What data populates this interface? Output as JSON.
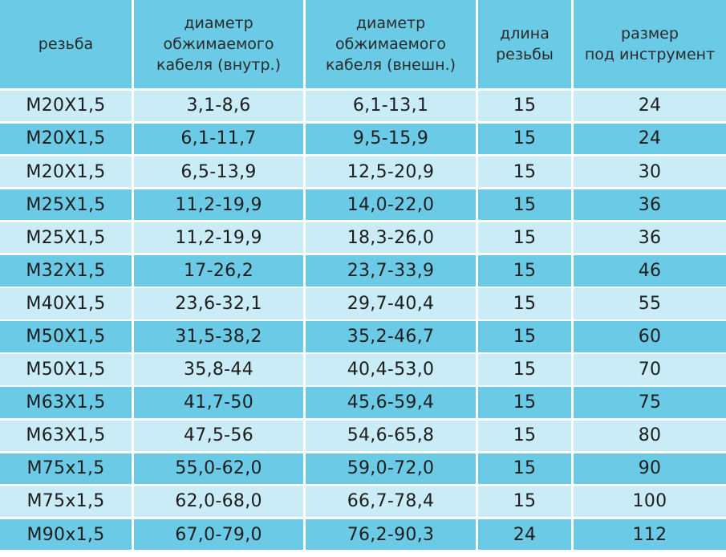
{
  "headers": [
    "резьба",
    "диаметр\nобжимаемого\nкабеля (внутр.)",
    "диаметр\nобжимаемого\nкабеля (внешн.)",
    "длина\nрезьбы",
    "размер\nпод инструмент"
  ],
  "rows": [
    [
      "M20X1,5",
      "3,1-8,6",
      "6,1-13,1",
      "15",
      "24"
    ],
    [
      "M20X1,5",
      "6,1-11,7",
      "9,5-15,9",
      "15",
      "24"
    ],
    [
      "M20X1,5",
      "6,5-13,9",
      "12,5-20,9",
      "15",
      "30"
    ],
    [
      "M25X1,5",
      "11,2-19,9",
      "14,0-22,0",
      "15",
      "36"
    ],
    [
      "M25X1,5",
      "11,2-19,9",
      "18,3-26,0",
      "15",
      "36"
    ],
    [
      "M32X1,5",
      "17-26,2",
      "23,7-33,9",
      "15",
      "46"
    ],
    [
      "M40X1,5",
      "23,6-32,1",
      "29,7-40,4",
      "15",
      "55"
    ],
    [
      "M50X1,5",
      "31,5-38,2",
      "35,2-46,7",
      "15",
      "60"
    ],
    [
      "M50X1,5",
      "35,8-44",
      "40,4-53,0",
      "15",
      "70"
    ],
    [
      "M63X1,5",
      "41,7-50",
      "45,6-59,4",
      "15",
      "75"
    ],
    [
      "M63X1,5",
      "47,5-56",
      "54,6-65,8",
      "15",
      "80"
    ],
    [
      "M75x1,5",
      "55,0-62,0",
      "59,0-72,0",
      "15",
      "90"
    ],
    [
      "M75x1,5",
      "62,0-68,0",
      "66,7-78,4",
      "15",
      "100"
    ],
    [
      "M90x1,5",
      "67,0-79,0",
      "76,2-90,3",
      "24",
      "112"
    ]
  ],
  "colors": {
    "header": "#6bcbe6",
    "row_light": "#c9ecf7",
    "row_dark": "#6bcbe6"
  }
}
